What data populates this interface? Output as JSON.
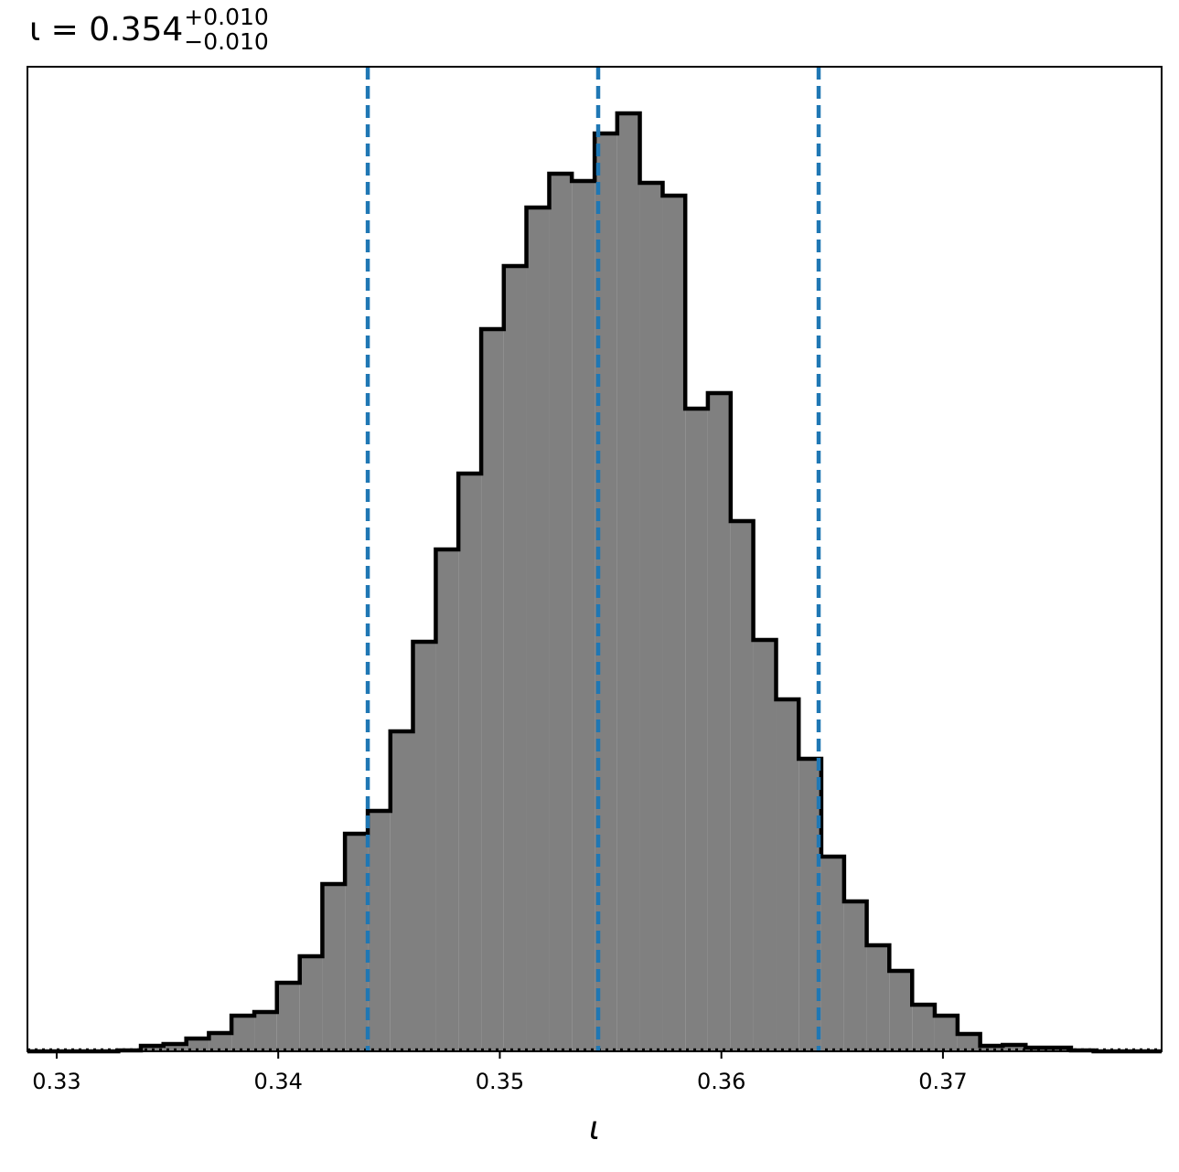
{
  "chart_data": {
    "type": "histogram",
    "title": {
      "main": "ι = 0.354",
      "upper": "+0.010",
      "lower": "−0.010"
    },
    "x_label": "ι",
    "bins": [
      0.32868,
      0.3297,
      0.33073,
      0.33175,
      0.33278,
      0.3338,
      0.33482,
      0.33585,
      0.33687,
      0.33789,
      0.33892,
      0.33994,
      0.34097,
      0.34199,
      0.34301,
      0.34404,
      0.34506,
      0.34608,
      0.34711,
      0.34813,
      0.34916,
      0.35018,
      0.3512,
      0.35223,
      0.35325,
      0.35428,
      0.3553,
      0.35632,
      0.35735,
      0.35837,
      0.35939,
      0.36042,
      0.36144,
      0.36247,
      0.36349,
      0.36451,
      0.36554,
      0.36656,
      0.36758,
      0.36861,
      0.36963,
      0.37066,
      0.37168,
      0.3727,
      0.37373,
      0.37475,
      0.37578,
      0.3768,
      0.37782,
      0.37885,
      0.37987
    ],
    "values": [
      0,
      0,
      0,
      0,
      1,
      6,
      8,
      14,
      20,
      39,
      43,
      75,
      104,
      183,
      238,
      263,
      350,
      448,
      549,
      632,
      790,
      859,
      923,
      960,
      952,
      1004,
      1026,
      950,
      936,
      703,
      720,
      580,
      450,
      385,
      320,
      213,
      164,
      116,
      88,
      51,
      39,
      19,
      6,
      7,
      4,
      4,
      1,
      0,
      0,
      0
    ],
    "color": "#808080",
    "edge_color": "#000000",
    "quantiles": [
      0.34404,
      0.35444,
      0.36439
    ],
    "quantile_color": "#1f77b4",
    "hline": 0,
    "xlim": [
      0.32868,
      0.37987
    ],
    "ylim": [
      0,
      1077
    ],
    "xticks": [
      0.33,
      0.34,
      0.35,
      0.36,
      0.37
    ]
  }
}
